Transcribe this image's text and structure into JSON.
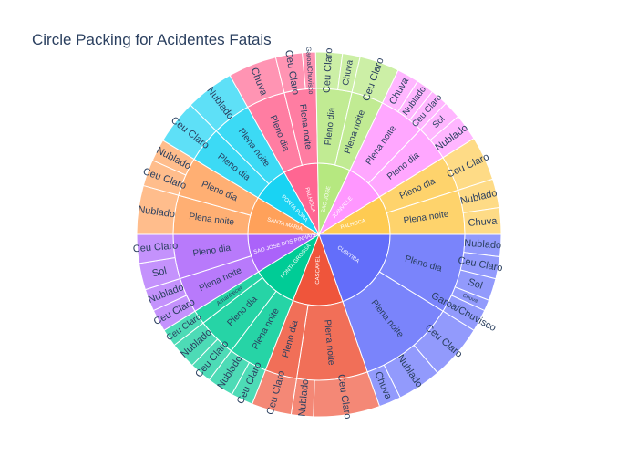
{
  "page": {
    "title": "Circle Packing for Acidentes Fatais"
  },
  "chart_data": {
    "type": "sunburst",
    "title": "Circle Packing for Acidentes Fatais",
    "levels": [
      "Municipio",
      "Fase do dia",
      "Condicao meteorologica"
    ],
    "colors": [
      "#636efa",
      "#EF553B",
      "#00cc96",
      "#ab63fa",
      "#FFA15A",
      "#19d3f3",
      "#FF6692",
      "#B6E880",
      "#FF97FF",
      "#FECB52"
    ],
    "series": [
      {
        "name": "CURITIBA",
        "children": [
          {
            "name": "Pleno dia",
            "value": 45,
            "children": [
              {
                "name": "Nublado",
                "value": 10
              },
              {
                "name": "Ceu Claro",
                "value": 10
              },
              {
                "name": "Sol",
                "value": 10
              },
              {
                "name": "Chuva",
                "value": 5
              },
              {
                "name": "Garoa/Chuvisco",
                "value": 10
              }
            ]
          },
          {
            "name": "Plena noite",
            "value": 55,
            "children": [
              {
                "name": "Ceu Claro",
                "value": 25
              },
              {
                "name": "Nublado",
                "value": 20
              },
              {
                "name": "Chuva",
                "value": 10
              }
            ]
          }
        ]
      },
      {
        "name": "CASCAVEL",
        "children": [
          {
            "name": "Plena noite",
            "value": 40,
            "children": [
              {
                "name": "Ceu Claro",
                "value": 30
              },
              {
                "name": "Nublado",
                "value": 10
              }
            ]
          },
          {
            "name": "Pleno dia",
            "value": 18,
            "children": [
              {
                "name": "Ceu Claro",
                "value": 18
              }
            ]
          }
        ]
      },
      {
        "name": "PONTA GROSSA",
        "children": [
          {
            "name": "Plena noite",
            "value": 22,
            "children": [
              {
                "name": "Ceu Claro",
                "value": 10
              },
              {
                "name": "Nublado",
                "value": 12
              }
            ]
          },
          {
            "name": "Pleno dia",
            "value": 22,
            "children": [
              {
                "name": "Ceu Claro",
                "value": 10
              },
              {
                "name": "Nublado",
                "value": 12
              }
            ]
          },
          {
            "name": "Amanhecer",
            "value": 8,
            "children": [
              {
                "name": "Ceu Claro",
                "value": 8
              }
            ]
          }
        ]
      },
      {
        "name": "SAO JOSE DOS PINHAIS",
        "children": [
          {
            "name": "Plena noite",
            "value": 20,
            "children": [
              {
                "name": "Ceu Claro",
                "value": 10
              },
              {
                "name": "Nublado",
                "value": 10
              }
            ]
          },
          {
            "name": "Pleno dia",
            "value": 25,
            "children": [
              {
                "name": "Sol",
                "value": 12
              },
              {
                "name": "Ceu Claro",
                "value": 13
              }
            ]
          }
        ]
      },
      {
        "name": "SANTA MARIA",
        "children": [
          {
            "name": "Plena noite",
            "value": 22,
            "children": [
              {
                "name": "Nublado",
                "value": 22
              }
            ]
          },
          {
            "name": "Pleno dia",
            "value": 22,
            "children": [
              {
                "name": "Ceu Claro",
                "value": 12
              },
              {
                "name": "Nublado",
                "value": 10
              }
            ]
          }
        ]
      },
      {
        "name": "PONTA PORA",
        "children": [
          {
            "name": "Pleno dia",
            "value": 20,
            "children": [
              {
                "name": "Ceu Claro",
                "value": 20
              }
            ]
          },
          {
            "name": "Plena noite",
            "value": 22,
            "children": [
              {
                "name": "Nublado",
                "value": 22
              }
            ]
          }
        ]
      },
      {
        "name": "PALHOCA",
        "children": [
          {
            "name": "Pleno dia",
            "value": 22,
            "children": [
              {
                "name": "Chuva",
                "value": 22
              }
            ]
          },
          {
            "name": "Plena noite",
            "value": 18,
            "children": [
              {
                "name": "Ceu Claro",
                "value": 12
              },
              {
                "name": "Garoa/Chuvisco",
                "value": 6
              }
            ]
          }
        ]
      },
      {
        "name": "SAO JOSE",
        "children": [
          {
            "name": "Pleno dia",
            "value": 20,
            "children": [
              {
                "name": "Ceu Claro",
                "value": 12
              },
              {
                "name": "Chuva",
                "value": 8
              }
            ]
          },
          {
            "name": "Plena noite",
            "value": 18,
            "children": [
              {
                "name": "Ceu Claro",
                "value": 18
              }
            ]
          }
        ]
      },
      {
        "name": "JOINVILLE",
        "children": [
          {
            "name": "Plena noite",
            "value": 26,
            "children": [
              {
                "name": "Chuva",
                "value": 10
              },
              {
                "name": "Nublado",
                "value": 8
              },
              {
                "name": "Ceu Claro",
                "value": 8
              }
            ]
          },
          {
            "name": "Pleno dia",
            "value": 20,
            "children": [
              {
                "name": "Sol",
                "value": 8
              },
              {
                "name": "Nublado",
                "value": 12
              }
            ]
          }
        ]
      },
      {
        "name": "PALHOCA",
        "children": [
          {
            "name": "Pleno dia",
            "value": 20,
            "children": [
              {
                "name": "Ceu Claro",
                "value": 20
              }
            ]
          },
          {
            "name": "Plena noite",
            "value": 25,
            "children": [
              {
                "name": "Nublado",
                "value": 13
              },
              {
                "name": "Chuva",
                "value": 12
              }
            ]
          }
        ]
      }
    ]
  }
}
